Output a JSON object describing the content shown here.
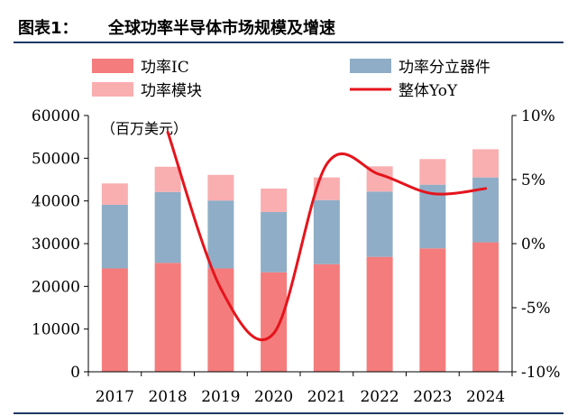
{
  "figure": {
    "label": "图表1：",
    "title": "全球功率半导体市场规模及增速"
  },
  "colors": {
    "ic": "#f47c7c",
    "discrete": "#8fadc6",
    "module": "#f9aeb0",
    "yoy": "#e5141c",
    "rule": "#1f3864"
  },
  "chart_data": {
    "type": "bar",
    "stacked": true,
    "categories": [
      "2017",
      "2018",
      "2019",
      "2020",
      "2021",
      "2022",
      "2023",
      "2024"
    ],
    "series": [
      {
        "name": "功率IC",
        "values": [
          24200,
          25500,
          24200,
          23300,
          25200,
          26900,
          28900,
          30300
        ],
        "color": "#f47c7c",
        "axis": "left"
      },
      {
        "name": "功率分立器件",
        "values": [
          14900,
          16600,
          15900,
          14100,
          15000,
          15300,
          14900,
          15200
        ],
        "color": "#8fadc6",
        "axis": "left"
      },
      {
        "name": "功率模块",
        "values": [
          5000,
          5900,
          6000,
          5500,
          5300,
          5900,
          6000,
          6600
        ],
        "color": "#f9aeb0",
        "axis": "left"
      }
    ],
    "line_series": {
      "name": "整体YoY",
      "values": [
        null,
        8.7,
        -3.5,
        -7.0,
        6.2,
        5.4,
        3.9,
        4.3
      ],
      "color": "#e5141c",
      "axis": "right"
    },
    "unit_note": "（百万美元）",
    "ylim": [
      0,
      60000
    ],
    "yticks": [
      0,
      10000,
      20000,
      30000,
      40000,
      50000,
      60000
    ],
    "y2lim": [
      -10,
      10
    ],
    "y2ticks": [
      "-10%",
      "-5%",
      "0%",
      "5%",
      "10%"
    ],
    "y2tick_values": [
      -10,
      -5,
      0,
      5,
      10
    ],
    "legend": [
      "功率IC",
      "功率分立器件",
      "功率模块",
      "整体YoY"
    ],
    "legend_position": "top",
    "grid": false
  }
}
